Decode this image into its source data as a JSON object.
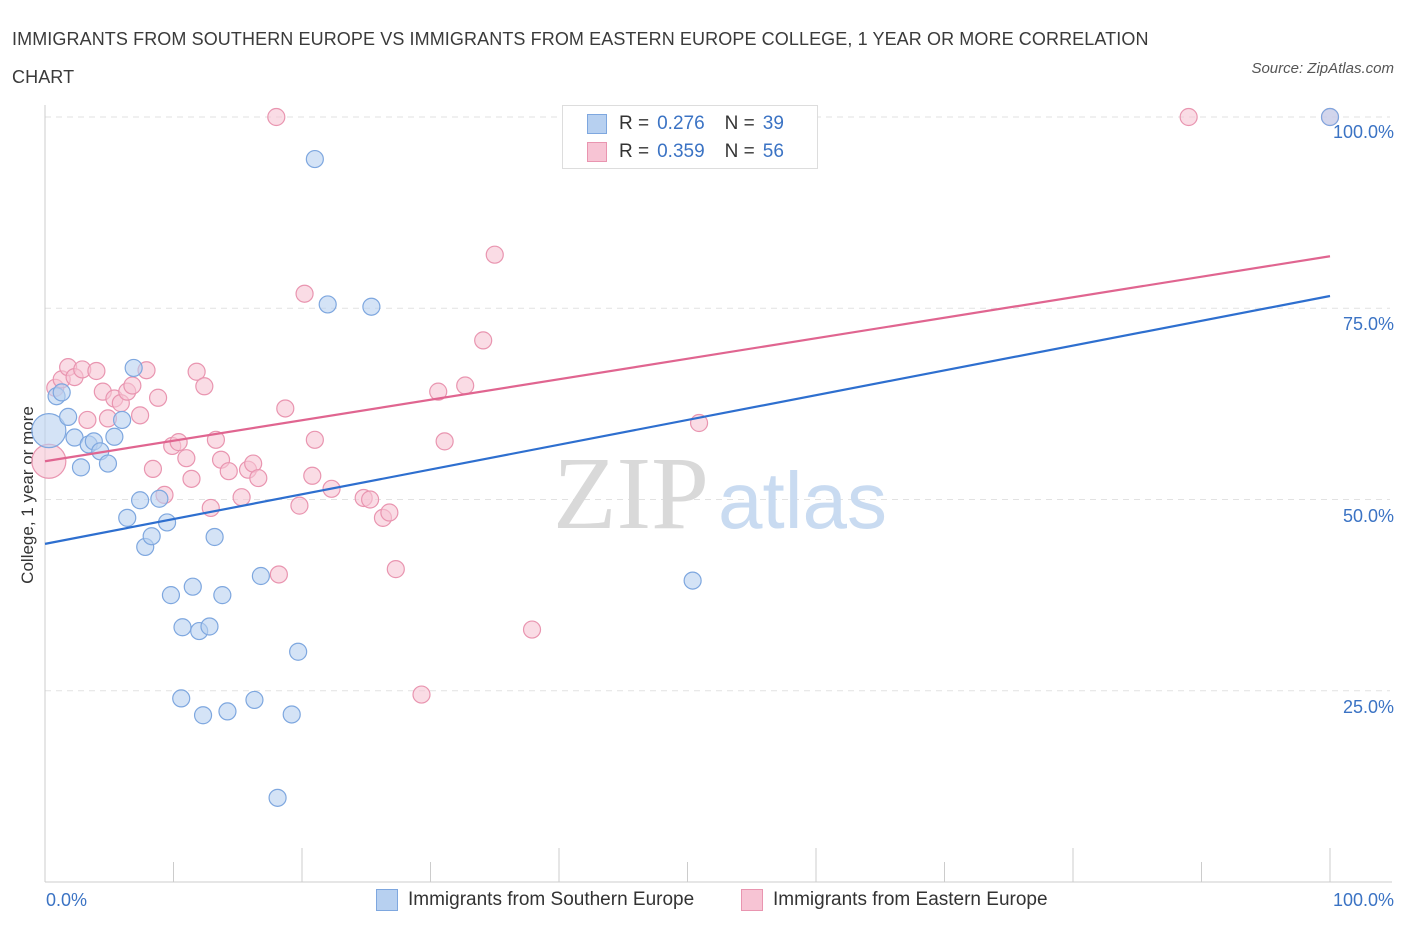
{
  "title": "IMMIGRANTS FROM SOUTHERN EUROPE VS IMMIGRANTS FROM EASTERN EUROPE COLLEGE, 1 YEAR OR MORE CORRELATION CHART",
  "source": "Source: ZipAtlas.com",
  "watermark": "ZIPatlas",
  "colors": {
    "blue_fill": "#b7d0f0",
    "blue_stroke": "#7ea7df",
    "blue_line": "#2e6fcf",
    "pink_fill": "#f7c4d4",
    "pink_stroke": "#e995b0",
    "pink_line": "#e06590",
    "tick_text": "#3b73c4"
  },
  "legend_top": {
    "rows": [
      {
        "r_label": "R =",
        "r_value": "0.276",
        "n_label": "N =",
        "n_value": "39"
      },
      {
        "r_label": "R =",
        "r_value": "0.359",
        "n_label": "N =",
        "n_value": "56"
      }
    ]
  },
  "chart_data": {
    "type": "scatter",
    "title": "IMMIGRANTS FROM SOUTHERN EUROPE VS IMMIGRANTS FROM EASTERN EUROPE COLLEGE, 1 YEAR OR MORE CORRELATION CHART",
    "xlabel": "",
    "ylabel": "College, 1 year or more",
    "xlim": [
      0,
      100
    ],
    "ylim": [
      0,
      100
    ],
    "x_tick_labels": [
      "0.0%",
      "100.0%"
    ],
    "y_tick_labels": [
      "100.0%",
      "75.0%",
      "50.0%",
      "25.0%"
    ],
    "y_tick_values": [
      100,
      75,
      50,
      25
    ],
    "grid": true,
    "legend": "bottom",
    "series": [
      {
        "name": "Immigrants from Southern Europe",
        "color": "blue",
        "r": 0.276,
        "n": 39,
        "trend": {
          "x": [
            0,
            100
          ],
          "y": [
            44.2,
            76.6
          ]
        },
        "points": [
          {
            "x": 0.3,
            "y": 59.0,
            "big": true
          },
          {
            "x": 0.9,
            "y": 63.5
          },
          {
            "x": 1.3,
            "y": 64.0
          },
          {
            "x": 1.8,
            "y": 60.8
          },
          {
            "x": 2.3,
            "y": 58.1
          },
          {
            "x": 2.8,
            "y": 54.2
          },
          {
            "x": 3.4,
            "y": 57.2
          },
          {
            "x": 3.8,
            "y": 57.6
          },
          {
            "x": 4.3,
            "y": 56.3
          },
          {
            "x": 4.9,
            "y": 54.7
          },
          {
            "x": 5.4,
            "y": 58.2
          },
          {
            "x": 6.0,
            "y": 60.4
          },
          {
            "x": 6.4,
            "y": 47.6
          },
          {
            "x": 6.9,
            "y": 67.2
          },
          {
            "x": 7.4,
            "y": 49.9
          },
          {
            "x": 7.8,
            "y": 43.8
          },
          {
            "x": 8.3,
            "y": 45.2
          },
          {
            "x": 8.9,
            "y": 50.1
          },
          {
            "x": 9.5,
            "y": 47.0
          },
          {
            "x": 9.8,
            "y": 37.5
          },
          {
            "x": 10.7,
            "y": 33.3
          },
          {
            "x": 10.6,
            "y": 24.0
          },
          {
            "x": 11.5,
            "y": 38.6
          },
          {
            "x": 12.0,
            "y": 32.8
          },
          {
            "x": 12.3,
            "y": 21.8
          },
          {
            "x": 12.8,
            "y": 33.4
          },
          {
            "x": 13.2,
            "y": 45.1
          },
          {
            "x": 13.8,
            "y": 37.5
          },
          {
            "x": 14.2,
            "y": 22.3
          },
          {
            "x": 16.3,
            "y": 23.8
          },
          {
            "x": 16.8,
            "y": 40.0
          },
          {
            "x": 18.1,
            "y": 11.0
          },
          {
            "x": 19.2,
            "y": 21.9
          },
          {
            "x": 19.7,
            "y": 30.1
          },
          {
            "x": 21.0,
            "y": 94.5
          },
          {
            "x": 22.0,
            "y": 75.5
          },
          {
            "x": 25.4,
            "y": 75.2
          },
          {
            "x": 50.4,
            "y": 39.4
          },
          {
            "x": 100.0,
            "y": 100.0
          }
        ]
      },
      {
        "name": "Immigrants from Eastern Europe",
        "color": "pink",
        "r": 0.359,
        "n": 56,
        "trend": {
          "x": [
            0,
            100
          ],
          "y": [
            55.0,
            81.8
          ]
        },
        "points": [
          {
            "x": 0.3,
            "y": 55.0,
            "big": true
          },
          {
            "x": 0.8,
            "y": 64.6
          },
          {
            "x": 1.3,
            "y": 65.7
          },
          {
            "x": 1.8,
            "y": 67.3
          },
          {
            "x": 2.3,
            "y": 66.0
          },
          {
            "x": 2.9,
            "y": 67.0
          },
          {
            "x": 3.3,
            "y": 60.4
          },
          {
            "x": 4.0,
            "y": 66.8
          },
          {
            "x": 4.5,
            "y": 64.1
          },
          {
            "x": 4.9,
            "y": 60.6
          },
          {
            "x": 5.4,
            "y": 63.2
          },
          {
            "x": 5.9,
            "y": 62.6
          },
          {
            "x": 6.4,
            "y": 64.1
          },
          {
            "x": 6.8,
            "y": 64.9
          },
          {
            "x": 7.4,
            "y": 61.0
          },
          {
            "x": 7.9,
            "y": 66.9
          },
          {
            "x": 8.4,
            "y": 54.0
          },
          {
            "x": 8.8,
            "y": 63.3
          },
          {
            "x": 9.3,
            "y": 50.6
          },
          {
            "x": 9.9,
            "y": 57.0
          },
          {
            "x": 10.4,
            "y": 57.5
          },
          {
            "x": 11.0,
            "y": 55.4
          },
          {
            "x": 11.4,
            "y": 52.7
          },
          {
            "x": 11.8,
            "y": 66.7
          },
          {
            "x": 12.4,
            "y": 64.8
          },
          {
            "x": 12.9,
            "y": 48.9
          },
          {
            "x": 13.3,
            "y": 57.8
          },
          {
            "x": 13.7,
            "y": 55.2
          },
          {
            "x": 14.3,
            "y": 53.7
          },
          {
            "x": 15.3,
            "y": 50.3
          },
          {
            "x": 15.8,
            "y": 53.9
          },
          {
            "x": 16.2,
            "y": 54.7
          },
          {
            "x": 16.6,
            "y": 52.8
          },
          {
            "x": 18.2,
            "y": 40.2
          },
          {
            "x": 18.7,
            "y": 61.9
          },
          {
            "x": 19.8,
            "y": 49.2
          },
          {
            "x": 20.2,
            "y": 76.9
          },
          {
            "x": 20.8,
            "y": 53.1
          },
          {
            "x": 21.0,
            "y": 57.8
          },
          {
            "x": 22.3,
            "y": 51.4
          },
          {
            "x": 24.8,
            "y": 50.2
          },
          {
            "x": 25.3,
            "y": 50.0
          },
          {
            "x": 26.3,
            "y": 47.6
          },
          {
            "x": 26.8,
            "y": 48.3
          },
          {
            "x": 27.3,
            "y": 40.9
          },
          {
            "x": 29.3,
            "y": 24.5
          },
          {
            "x": 30.6,
            "y": 64.1
          },
          {
            "x": 31.1,
            "y": 57.6
          },
          {
            "x": 32.7,
            "y": 64.9
          },
          {
            "x": 34.1,
            "y": 70.8
          },
          {
            "x": 35.0,
            "y": 82.0
          },
          {
            "x": 37.9,
            "y": 33.0
          },
          {
            "x": 18.0,
            "y": 100.0
          },
          {
            "x": 50.9,
            "y": 60.0
          },
          {
            "x": 89.0,
            "y": 100.0
          },
          {
            "x": 100.0,
            "y": 100.0
          }
        ]
      }
    ]
  },
  "legend_bottom": {
    "items": [
      {
        "label": "Immigrants from Southern Europe"
      },
      {
        "label": "Immigrants from Eastern Europe"
      }
    ]
  }
}
